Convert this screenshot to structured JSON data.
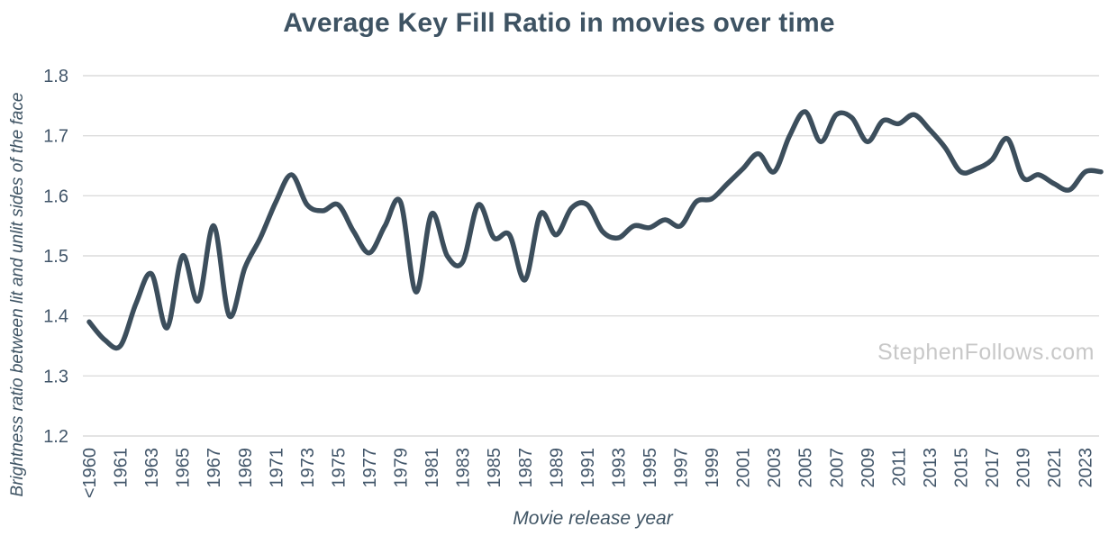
{
  "watermark": "StephenFollows.com",
  "colors": {
    "background": "#FFFFFF",
    "text": "#3E5363",
    "tick_text": "#42566A",
    "grid": "#DCDCDC",
    "line": "#3C4E5C",
    "watermark": "#C8C8C8"
  },
  "chart_data": {
    "type": "line",
    "title": "Average Key Fill Ratio in movies over time",
    "xlabel": "Movie release year",
    "ylabel": "Brightness ratio between lit and unlit sides of the face",
    "ylim": [
      1.2,
      1.8
    ],
    "grid": "horizontal",
    "legend": "none",
    "smooth": true,
    "y_ticks": [
      "1.8",
      "1.7",
      "1.6",
      "1.5",
      "1.4",
      "1.3",
      "1.2"
    ],
    "x_ticks": [
      "<1960",
      "1961",
      "1963",
      "1965",
      "1967",
      "1969",
      "1971",
      "1973",
      "1975",
      "1977",
      "1979",
      "1981",
      "1983",
      "1985",
      "1987",
      "1989",
      "1991",
      "1993",
      "1995",
      "1997",
      "1999",
      "2001",
      "2003",
      "2005",
      "2007",
      "2009",
      "2011",
      "2013",
      "2015",
      "2017",
      "2019",
      "2021",
      "2023"
    ],
    "categories": [
      "<1960",
      "1960",
      "1961",
      "1962",
      "1963",
      "1964",
      "1965",
      "1966",
      "1967",
      "1968",
      "1969",
      "1970",
      "1971",
      "1972",
      "1973",
      "1974",
      "1975",
      "1976",
      "1977",
      "1978",
      "1979",
      "1980",
      "1981",
      "1982",
      "1983",
      "1984",
      "1985",
      "1986",
      "1987",
      "1988",
      "1989",
      "1990",
      "1991",
      "1992",
      "1993",
      "1994",
      "1995",
      "1996",
      "1997",
      "1998",
      "1999",
      "2000",
      "2001",
      "2002",
      "2003",
      "2004",
      "2005",
      "2006",
      "2007",
      "2008",
      "2009",
      "2010",
      "2011",
      "2012",
      "2013",
      "2014",
      "2015",
      "2016",
      "2017",
      "2018",
      "2019",
      "2020",
      "2021",
      "2022",
      "2023",
      "2024"
    ],
    "values": [
      1.39,
      1.36,
      1.35,
      1.42,
      1.47,
      1.38,
      1.5,
      1.425,
      1.55,
      1.4,
      1.48,
      1.53,
      1.59,
      1.635,
      1.585,
      1.575,
      1.585,
      1.54,
      1.505,
      1.55,
      1.59,
      1.44,
      1.57,
      1.5,
      1.49,
      1.585,
      1.53,
      1.535,
      1.46,
      1.57,
      1.535,
      1.58,
      1.585,
      1.54,
      1.53,
      1.55,
      1.547,
      1.56,
      1.55,
      1.59,
      1.595,
      1.62,
      1.645,
      1.67,
      1.64,
      1.7,
      1.74,
      1.69,
      1.735,
      1.73,
      1.69,
      1.725,
      1.72,
      1.735,
      1.71,
      1.68,
      1.64,
      1.645,
      1.66,
      1.695,
      1.63,
      1.635,
      1.62,
      1.61,
      1.64,
      1.64
    ]
  }
}
